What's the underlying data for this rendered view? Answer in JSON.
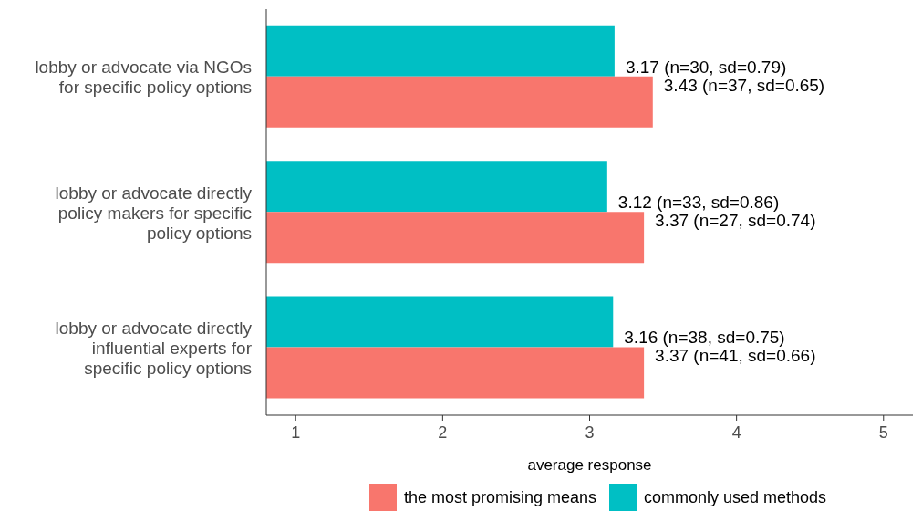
{
  "chart_data": {
    "type": "bar",
    "orientation": "horizontal",
    "xlabel": "average response",
    "categories": [
      "lobby or advocate via NGOs for specific policy options",
      "lobby or advocate directly policy makers for specific policy options",
      "lobby or advocate directly influential experts for specific policy options"
    ],
    "series": [
      {
        "name": "commonly used methods",
        "color": "#00bfc4",
        "values": [
          3.17,
          3.12,
          3.16
        ],
        "value_labels": [
          "3.17 (n=30, sd=0.79)",
          "3.12 (n=33, sd=0.86)",
          "3.16 (n=38, sd=0.75)"
        ]
      },
      {
        "name": "the most promising means",
        "color": "#f8766d",
        "values": [
          3.43,
          3.37,
          3.37
        ],
        "value_labels": [
          "3.43 (n=37, sd=0.65)",
          "3.37 (n=27, sd=0.74)",
          "3.37 (n=41, sd=0.66)"
        ]
      }
    ],
    "xlim": [
      0.8,
      5.2
    ],
    "xticks": [
      1,
      2,
      3,
      4,
      5
    ],
    "legend": "bottom"
  }
}
